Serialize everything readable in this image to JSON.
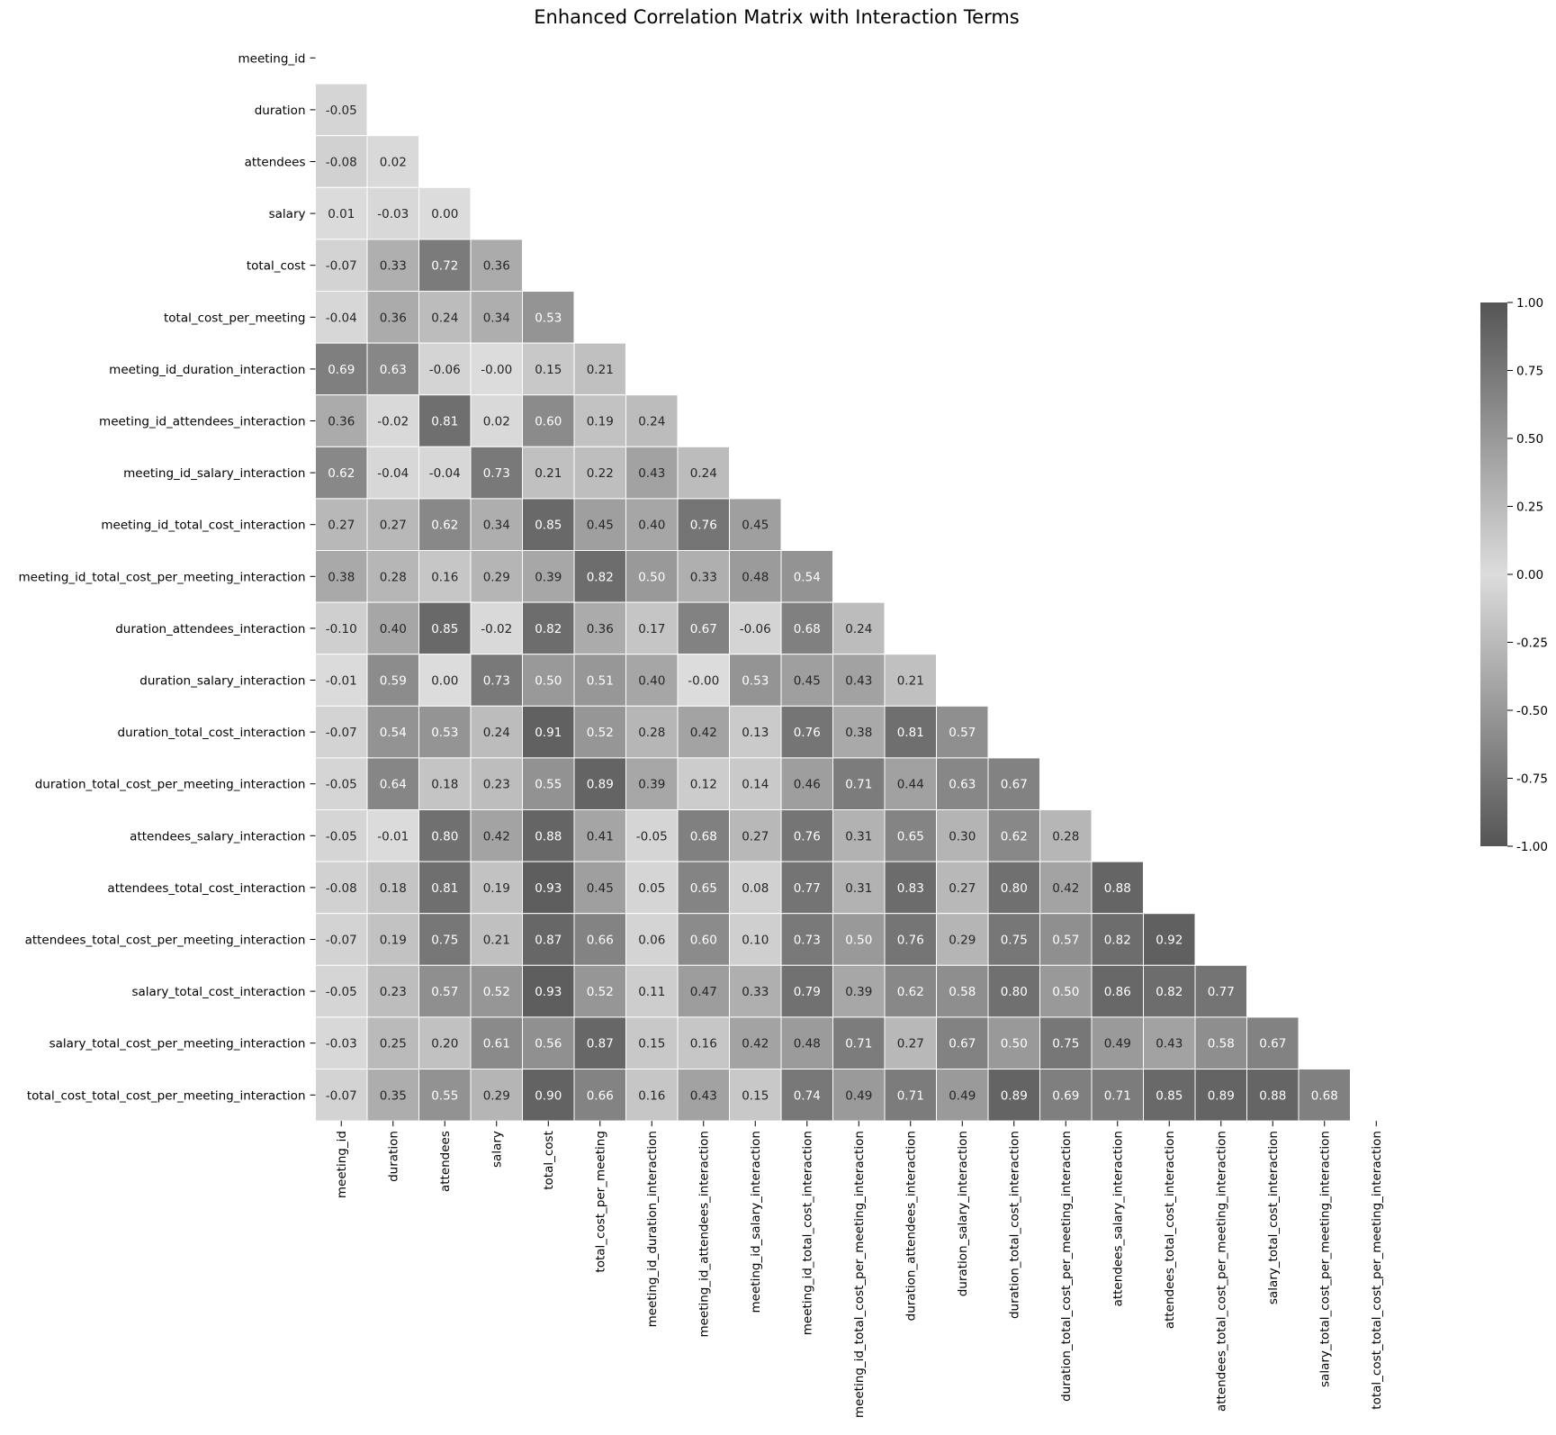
{
  "chart_data": {
    "type": "heatmap",
    "title": "Enhanced Correlation Matrix with Interaction Terms",
    "variables": [
      "meeting_id",
      "duration",
      "attendees",
      "salary",
      "total_cost",
      "total_cost_per_meeting",
      "meeting_id_duration_interaction",
      "meeting_id_attendees_interaction",
      "meeting_id_salary_interaction",
      "meeting_id_total_cost_interaction",
      "meeting_id_total_cost_per_meeting_interaction",
      "duration_attendees_interaction",
      "duration_salary_interaction",
      "duration_total_cost_interaction",
      "duration_total_cost_per_meeting_interaction",
      "attendees_salary_interaction",
      "attendees_total_cost_interaction",
      "attendees_total_cost_per_meeting_interaction",
      "salary_total_cost_interaction",
      "salary_total_cost_per_meeting_interaction",
      "total_cost_total_cost_per_meeting_interaction"
    ],
    "mask": "upper-triangle-including-diagonal",
    "lower_triangle_values": [
      [],
      [
        "-0.05"
      ],
      [
        "-0.08",
        "0.02"
      ],
      [
        "0.01",
        "-0.03",
        "0.00"
      ],
      [
        "-0.07",
        "0.33",
        "0.72",
        "0.36"
      ],
      [
        "-0.04",
        "0.36",
        "0.24",
        "0.34",
        "0.53"
      ],
      [
        "0.69",
        "0.63",
        "-0.06",
        "-0.00",
        "0.15",
        "0.21"
      ],
      [
        "0.36",
        "-0.02",
        "0.81",
        "0.02",
        "0.60",
        "0.19",
        "0.24"
      ],
      [
        "0.62",
        "-0.04",
        "-0.04",
        "0.73",
        "0.21",
        "0.22",
        "0.43",
        "0.24"
      ],
      [
        "0.27",
        "0.27",
        "0.62",
        "0.34",
        "0.85",
        "0.45",
        "0.40",
        "0.76",
        "0.45"
      ],
      [
        "0.38",
        "0.28",
        "0.16",
        "0.29",
        "0.39",
        "0.82",
        "0.50",
        "0.33",
        "0.48",
        "0.54"
      ],
      [
        "-0.10",
        "0.40",
        "0.85",
        "-0.02",
        "0.82",
        "0.36",
        "0.17",
        "0.67",
        "-0.06",
        "0.68",
        "0.24"
      ],
      [
        "-0.01",
        "0.59",
        "0.00",
        "0.73",
        "0.50",
        "0.51",
        "0.40",
        "-0.00",
        "0.53",
        "0.45",
        "0.43",
        "0.21"
      ],
      [
        "-0.07",
        "0.54",
        "0.53",
        "0.24",
        "0.91",
        "0.52",
        "0.28",
        "0.42",
        "0.13",
        "0.76",
        "0.38",
        "0.81",
        "0.57"
      ],
      [
        "-0.05",
        "0.64",
        "0.18",
        "0.23",
        "0.55",
        "0.89",
        "0.39",
        "0.12",
        "0.14",
        "0.46",
        "0.71",
        "0.44",
        "0.63",
        "0.67"
      ],
      [
        "-0.05",
        "-0.01",
        "0.80",
        "0.42",
        "0.88",
        "0.41",
        "-0.05",
        "0.68",
        "0.27",
        "0.76",
        "0.31",
        "0.65",
        "0.30",
        "0.62",
        "0.28"
      ],
      [
        "-0.08",
        "0.18",
        "0.81",
        "0.19",
        "0.93",
        "0.45",
        "0.05",
        "0.65",
        "0.08",
        "0.77",
        "0.31",
        "0.83",
        "0.27",
        "0.80",
        "0.42",
        "0.88"
      ],
      [
        "-0.07",
        "0.19",
        "0.75",
        "0.21",
        "0.87",
        "0.66",
        "0.06",
        "0.60",
        "0.10",
        "0.73",
        "0.50",
        "0.76",
        "0.29",
        "0.75",
        "0.57",
        "0.82",
        "0.92"
      ],
      [
        "-0.05",
        "0.23",
        "0.57",
        "0.52",
        "0.93",
        "0.52",
        "0.11",
        "0.47",
        "0.33",
        "0.79",
        "0.39",
        "0.62",
        "0.58",
        "0.80",
        "0.50",
        "0.86",
        "0.82",
        "0.77"
      ],
      [
        "-0.03",
        "0.25",
        "0.20",
        "0.61",
        "0.56",
        "0.87",
        "0.15",
        "0.16",
        "0.42",
        "0.48",
        "0.71",
        "0.27",
        "0.67",
        "0.50",
        "0.75",
        "0.49",
        "0.43",
        "0.58",
        "0.67"
      ],
      [
        "-0.07",
        "0.35",
        "0.55",
        "0.29",
        "0.90",
        "0.66",
        "0.16",
        "0.43",
        "0.15",
        "0.74",
        "0.49",
        "0.71",
        "0.49",
        "0.89",
        "0.69",
        "0.71",
        "0.85",
        "0.89",
        "0.88",
        "0.68"
      ]
    ],
    "colorbar": {
      "vmin": -1.0,
      "vmax": 1.0,
      "ticks": [
        "1.00",
        "0.75",
        "0.50",
        "0.25",
        "0.00",
        "-0.25",
        "-0.50",
        "-0.75",
        "-1.00"
      ],
      "colormap": "diverging grey (dark at both ends, light at 0)"
    },
    "colors": {
      "extreme": "#555555",
      "center": "#dcdcdc",
      "light_text": "#ffffff",
      "dark_text": "#262626"
    }
  }
}
